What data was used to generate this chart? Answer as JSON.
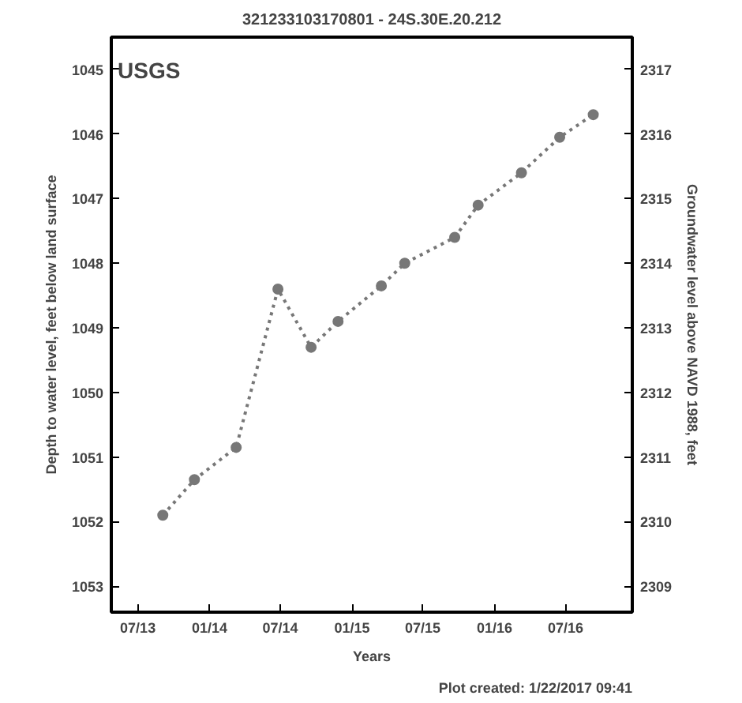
{
  "chart_data": {
    "type": "line",
    "title": "321233103170801 - 24S.30E.20.212",
    "xlabel": "Years",
    "ylabel": "Depth to water level, feet below land surface",
    "y2label": "Groundwater level above NAVD 1988, feet",
    "annotations": [
      "USGS",
      "Plot created: 1/22/2017 09:41"
    ],
    "x": [
      "2013-09-03",
      "2013-11-23",
      "2014-03-10",
      "2014-06-25",
      "2014-09-18",
      "2014-11-26",
      "2015-03-17",
      "2015-05-16",
      "2015-09-21",
      "2015-11-20",
      "2016-03-10",
      "2016-06-16",
      "2016-09-10"
    ],
    "series": [
      {
        "color": "#777777",
        "values": [
          1051.9,
          1051.35,
          1050.85,
          1048.4,
          1049.3,
          1048.9,
          1048.35,
          1048.0,
          1047.6,
          1047.1,
          1046.6,
          1046.05,
          1045.7
        ]
      }
    ],
    "xlim": [
      "2013-04-24",
      "2016-12-19"
    ],
    "xticks": [
      {
        "value": "2013-07-01",
        "label": "07/13"
      },
      {
        "value": "2014-01-01",
        "label": "01/14"
      },
      {
        "value": "2014-07-01",
        "label": "07/14"
      },
      {
        "value": "2015-01-01",
        "label": "01/15"
      },
      {
        "value": "2015-07-01",
        "label": "07/15"
      },
      {
        "value": "2016-01-01",
        "label": "01/16"
      },
      {
        "value": "2016-07-01",
        "label": "07/16"
      }
    ],
    "ylim": [
      1053.4,
      1044.5
    ],
    "yticks": [
      1045,
      1046,
      1047,
      1048,
      1049,
      1050,
      1051,
      1052,
      1053
    ],
    "y2lim": [
      2308.6,
      2317.5
    ],
    "y2ticks": [
      2309,
      2310,
      2311,
      2312,
      2313,
      2314,
      2315,
      2316,
      2317
    ],
    "grid": false,
    "marker": "circle",
    "line_style": "dotted"
  }
}
